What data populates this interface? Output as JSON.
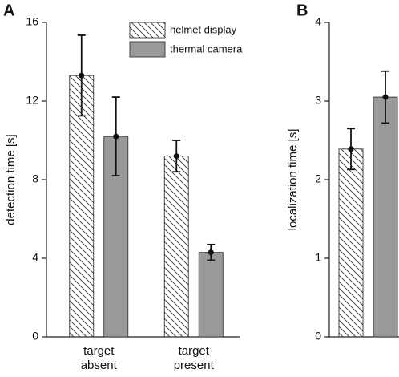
{
  "chart_data": [
    {
      "type": "bar",
      "panel_label": "A",
      "ylabel": "detection time [s]",
      "categories": [
        [
          "target",
          "absent"
        ],
        [
          "target",
          "present"
        ]
      ],
      "series": [
        {
          "name": "helmet display",
          "color": "#ffffff",
          "hatch": true,
          "values": [
            13.3,
            9.2
          ],
          "errors": [
            2.05,
            0.8
          ]
        },
        {
          "name": "thermal camera",
          "color": "#999999",
          "hatch": false,
          "values": [
            10.2,
            4.3
          ],
          "errors": [
            2.0,
            0.4
          ]
        }
      ],
      "ylim": [
        0,
        16
      ],
      "yticks": [
        0,
        4,
        8,
        12,
        16
      ],
      "legend": "top"
    },
    {
      "type": "bar",
      "panel_label": "B",
      "ylabel": "localization time [s]",
      "categories": [
        null
      ],
      "series": [
        {
          "color": "#ffffff",
          "hatch": true,
          "values": [
            2.39
          ],
          "errors": [
            0.26
          ]
        },
        {
          "color": "#999999",
          "hatch": false,
          "values": [
            3.05
          ],
          "errors": [
            0.33
          ]
        }
      ],
      "ylim": [
        0,
        4
      ],
      "yticks": [
        0,
        1,
        2,
        3,
        4
      ]
    }
  ]
}
